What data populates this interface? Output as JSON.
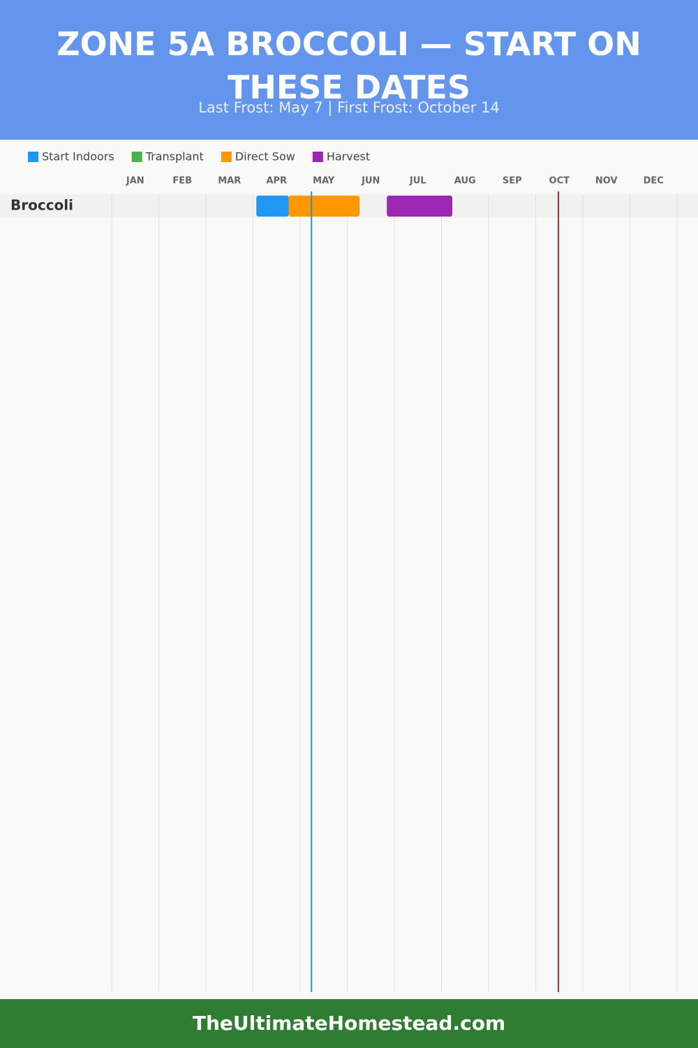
{
  "chart_data": {
    "type": "gantt",
    "title": "ZONE 5A BROCCOLI — START ON THESE DATES",
    "subtitle": "Last Frost: May 7 | First Frost: October 14",
    "footer": "TheUltimateHomestead.com",
    "categories": [
      "JAN",
      "FEB",
      "MAR",
      "APR",
      "MAY",
      "JUN",
      "JUL",
      "AUG",
      "SEP",
      "OCT",
      "NOV",
      "DEC"
    ],
    "xlim": [
      0,
      12
    ],
    "xticks": [
      0,
      1,
      2,
      3,
      4,
      5,
      6,
      7,
      8,
      9,
      10,
      11,
      12
    ],
    "grid": true,
    "series": [
      {
        "name": "Start Indoors",
        "color": "#2196f3"
      },
      {
        "name": "Transplant",
        "color": "#4caf50"
      },
      {
        "name": "Direct Sow",
        "color": "#ff9800"
      },
      {
        "name": "Harvest",
        "color": "#9c27b0"
      }
    ],
    "rows": [
      {
        "name": "Broccoli",
        "segments": [
          {
            "series": 0,
            "start": 3.07,
            "end": 3.76
          },
          {
            "series": 2,
            "start": 3.76,
            "end": 5.26
          },
          {
            "series": 3,
            "start": 5.84,
            "end": 7.23
          }
        ]
      }
    ],
    "markers": [
      {
        "x": 4.24,
        "color": "#3a8fd1"
      },
      {
        "x": 9.48,
        "color": "#a52a2a"
      }
    ]
  }
}
